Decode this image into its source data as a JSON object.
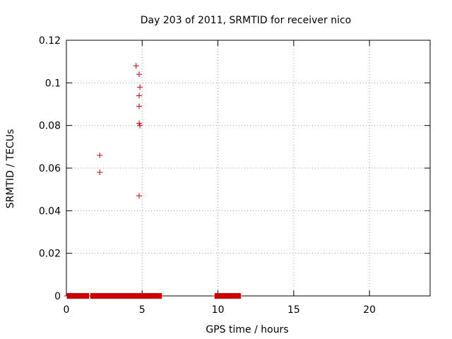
{
  "chart_data": {
    "type": "scatter",
    "title": "Day 203 of 2011, SRMTID for receiver nico",
    "xlabel": "GPS time / hours",
    "ylabel": "SRMTID / TECUs",
    "xlim": [
      0,
      24
    ],
    "ylim": [
      0,
      0.12
    ],
    "xticks": [
      0,
      5,
      10,
      15,
      20
    ],
    "yticks": [
      0,
      0.02,
      0.04,
      0.06,
      0.08,
      0.1,
      0.12
    ],
    "xtick_labels": [
      "0",
      "5",
      "10",
      "15",
      "20"
    ],
    "ytick_labels": [
      "0",
      "0.02",
      "0.04",
      "0.06",
      "0.08",
      "0.1",
      "0.12"
    ],
    "grid": true,
    "marker": "+",
    "color": "#cc0000",
    "series": [
      {
        "name": "SRMTID",
        "x": [
          2.2,
          2.2,
          4.6,
          4.8,
          4.85,
          4.8,
          4.8,
          4.8,
          4.85,
          4.8
        ],
        "y": [
          0.066,
          0.058,
          0.108,
          0.104,
          0.098,
          0.094,
          0.089,
          0.081,
          0.08,
          0.047
        ]
      }
    ],
    "zero_ranges": [
      [
        0.05,
        1.5
      ],
      [
        1.6,
        6.3
      ],
      [
        9.8,
        11.5
      ]
    ]
  }
}
